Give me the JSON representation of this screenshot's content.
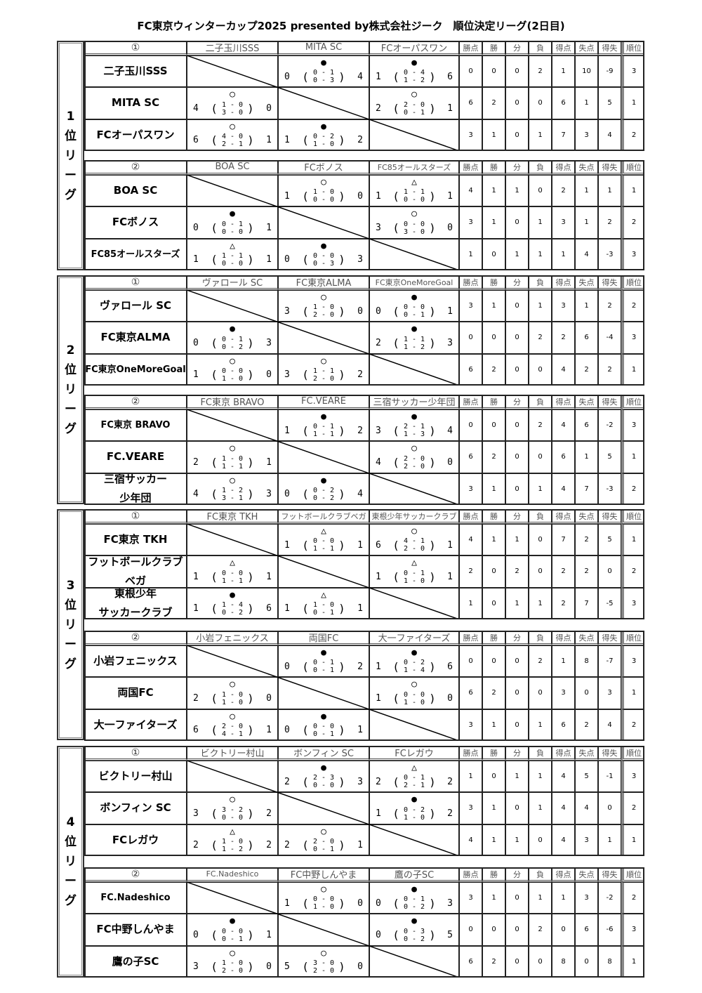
{
  "title": "FC東京ウィンターカップ2025 presented by株式会社ジーク　順位決定リーグ(2日目)",
  "stat_headers": [
    "勝点",
    "勝",
    "分",
    "負",
    "得点",
    "失点",
    "得失",
    "順位"
  ],
  "leagues": [
    {
      "label": [
        "1",
        "位",
        "リ",
        "ー",
        "グ"
      ],
      "groups": [
        {
          "num": "①",
          "header_names": [
            "二子玉川SSS",
            "MITA SC",
            "FCオーパスワン"
          ],
          "teams": [
            {
              "name": [
                "二子玉川SSS"
              ],
              "results": [
                null,
                [
                  "●",
                  0,
                  0,
                  1,
                  0,
                  3,
                  4
                ],
                [
                  "●",
                  1,
                  0,
                  4,
                  1,
                  2,
                  6
                ]
              ],
              "stats": [
                0,
                0,
                0,
                2,
                1,
                10,
                -9,
                3
              ]
            },
            {
              "name": [
                "MITA SC"
              ],
              "results": [
                [
                  "○",
                  4,
                  1,
                  0,
                  3,
                  0,
                  0
                ],
                null,
                [
                  "○",
                  2,
                  2,
                  0,
                  0,
                  1,
                  1
                ]
              ],
              "stats": [
                6,
                2,
                0,
                0,
                6,
                1,
                5,
                1
              ]
            },
            {
              "name": [
                "FCオーパスワン"
              ],
              "results": [
                [
                  "○",
                  6,
                  4,
                  0,
                  2,
                  1,
                  1
                ],
                [
                  "●",
                  1,
                  0,
                  2,
                  1,
                  0,
                  2
                ],
                null
              ],
              "stats": [
                3,
                1,
                0,
                1,
                7,
                3,
                4,
                2
              ]
            }
          ]
        },
        {
          "num": "②",
          "header_names": [
            "BOA SC",
            "FCボノス",
            "FC85オールスターズ"
          ],
          "teams": [
            {
              "name": [
                "BOA SC"
              ],
              "results": [
                null,
                [
                  "○",
                  1,
                  1,
                  0,
                  0,
                  0,
                  0
                ],
                [
                  "△",
                  1,
                  1,
                  1,
                  0,
                  0,
                  1
                ]
              ],
              "stats": [
                4,
                1,
                1,
                0,
                2,
                1,
                1,
                1
              ]
            },
            {
              "name": [
                "FCボノス"
              ],
              "results": [
                [
                  "●",
                  0,
                  0,
                  1,
                  0,
                  0,
                  1
                ],
                null,
                [
                  "○",
                  3,
                  0,
                  0,
                  3,
                  0,
                  0
                ]
              ],
              "stats": [
                3,
                1,
                0,
                1,
                3,
                1,
                2,
                2
              ]
            },
            {
              "name": [
                "FC85オールスターズ"
              ],
              "results": [
                [
                  "△",
                  1,
                  1,
                  1,
                  0,
                  0,
                  1
                ],
                [
                  "●",
                  0,
                  0,
                  0,
                  0,
                  3,
                  3
                ],
                null
              ],
              "stats": [
                1,
                0,
                1,
                1,
                1,
                4,
                -3,
                3
              ]
            }
          ]
        }
      ]
    },
    {
      "label": [
        "2",
        "位",
        "リ",
        "ー",
        "グ"
      ],
      "groups": [
        {
          "num": "①",
          "header_names": [
            "ヴァロール SC",
            "FC東京ALMA",
            "FC東京OneMoreGoal"
          ],
          "teams": [
            {
              "name": [
                "ヴァロール SC"
              ],
              "results": [
                null,
                [
                  "○",
                  3,
                  1,
                  0,
                  2,
                  0,
                  0
                ],
                [
                  "●",
                  0,
                  0,
                  0,
                  0,
                  1,
                  1
                ]
              ],
              "stats": [
                3,
                1,
                0,
                1,
                3,
                1,
                2,
                2
              ]
            },
            {
              "name": [
                "FC東京ALMA"
              ],
              "results": [
                [
                  "●",
                  0,
                  0,
                  1,
                  0,
                  2,
                  3
                ],
                null,
                [
                  "●",
                  2,
                  1,
                  1,
                  1,
                  2,
                  3
                ]
              ],
              "stats": [
                0,
                0,
                0,
                2,
                2,
                6,
                -4,
                3
              ]
            },
            {
              "name": [
                "FC東京OneMoreGoal"
              ],
              "results": [
                [
                  "○",
                  1,
                  0,
                  0,
                  1,
                  0,
                  0
                ],
                [
                  "○",
                  3,
                  1,
                  1,
                  2,
                  0,
                  2
                ],
                null
              ],
              "stats": [
                6,
                2,
                0,
                0,
                4,
                2,
                2,
                1
              ]
            }
          ]
        },
        {
          "num": "②",
          "header_names": [
            "FC東京 BRAVO",
            "FC.VEARE",
            "三宿サッカー少年団"
          ],
          "teams": [
            {
              "name": [
                "FC東京 BRAVO"
              ],
              "results": [
                null,
                [
                  "●",
                  1,
                  0,
                  1,
                  1,
                  1,
                  2
                ],
                [
                  "●",
                  3,
                  2,
                  1,
                  1,
                  3,
                  4
                ]
              ],
              "stats": [
                0,
                0,
                0,
                2,
                4,
                6,
                -2,
                3
              ]
            },
            {
              "name": [
                "FC.VEARE"
              ],
              "results": [
                [
                  "○",
                  2,
                  1,
                  0,
                  1,
                  1,
                  1
                ],
                null,
                [
                  "○",
                  4,
                  2,
                  0,
                  2,
                  0,
                  0
                ]
              ],
              "stats": [
                6,
                2,
                0,
                0,
                6,
                1,
                5,
                1
              ]
            },
            {
              "name": [
                "三宿サッカー",
                "少年団"
              ],
              "results": [
                [
                  "○",
                  4,
                  1,
                  2,
                  3,
                  1,
                  3
                ],
                [
                  "●",
                  0,
                  0,
                  2,
                  0,
                  2,
                  4
                ],
                null
              ],
              "stats": [
                3,
                1,
                0,
                1,
                4,
                7,
                -3,
                2
              ]
            }
          ]
        }
      ]
    },
    {
      "label": [
        "3",
        "位",
        "リ",
        "ー",
        "グ"
      ],
      "groups": [
        {
          "num": "①",
          "header_names": [
            "FC東京 TKH",
            "フットボールクラブベガ",
            "東根少年サッカークラブ"
          ],
          "teams": [
            {
              "name": [
                "FC東京 TKH"
              ],
              "results": [
                null,
                [
                  "△",
                  1,
                  0,
                  0,
                  1,
                  1,
                  1
                ],
                [
                  "○",
                  6,
                  4,
                  1,
                  2,
                  0,
                  1
                ]
              ],
              "stats": [
                4,
                1,
                1,
                0,
                7,
                2,
                5,
                1
              ]
            },
            {
              "name": [
                "フットボールクラブ",
                "ベガ"
              ],
              "results": [
                [
                  "△",
                  1,
                  0,
                  0,
                  1,
                  1,
                  1
                ],
                null,
                [
                  "△",
                  1,
                  0,
                  1,
                  1,
                  0,
                  1
                ]
              ],
              "stats": [
                2,
                0,
                2,
                0,
                2,
                2,
                0,
                2
              ]
            },
            {
              "name": [
                "東根少年",
                "サッカークラブ"
              ],
              "results": [
                [
                  "●",
                  1,
                  1,
                  4,
                  0,
                  2,
                  6
                ],
                [
                  "△",
                  1,
                  1,
                  0,
                  0,
                  1,
                  1
                ],
                null
              ],
              "stats": [
                1,
                0,
                1,
                1,
                2,
                7,
                -5,
                3
              ]
            }
          ]
        },
        {
          "num": "②",
          "header_names": [
            "小岩フェニックス",
            "両国FC",
            "大一ファイターズ"
          ],
          "teams": [
            {
              "name": [
                "小岩フェニックス"
              ],
              "results": [
                null,
                [
                  "●",
                  0,
                  0,
                  1,
                  0,
                  1,
                  2
                ],
                [
                  "●",
                  1,
                  0,
                  2,
                  1,
                  4,
                  6
                ]
              ],
              "stats": [
                0,
                0,
                0,
                2,
                1,
                8,
                -7,
                3
              ]
            },
            {
              "name": [
                "両国FC"
              ],
              "results": [
                [
                  "○",
                  2,
                  1,
                  0,
                  1,
                  0,
                  0
                ],
                null,
                [
                  "○",
                  1,
                  0,
                  0,
                  1,
                  0,
                  0
                ]
              ],
              "stats": [
                6,
                2,
                0,
                0,
                3,
                0,
                3,
                1
              ]
            },
            {
              "name": [
                "大一ファイターズ"
              ],
              "results": [
                [
                  "○",
                  6,
                  2,
                  0,
                  4,
                  1,
                  1
                ],
                [
                  "●",
                  0,
                  0,
                  0,
                  0,
                  1,
                  1
                ],
                null
              ],
              "stats": [
                3,
                1,
                0,
                1,
                6,
                2,
                4,
                2
              ]
            }
          ]
        }
      ]
    },
    {
      "label": [
        "4",
        "位",
        "リ",
        "ー",
        "グ"
      ],
      "groups": [
        {
          "num": "①",
          "header_names": [
            "ビクトリー村山",
            "ボンフィン SC",
            "FCレガウ"
          ],
          "teams": [
            {
              "name": [
                "ビクトリー村山"
              ],
              "results": [
                null,
                [
                  "●",
                  2,
                  2,
                  3,
                  0,
                  0,
                  3
                ],
                [
                  "△",
                  2,
                  0,
                  1,
                  2,
                  1,
                  2
                ]
              ],
              "stats": [
                1,
                0,
                1,
                1,
                4,
                5,
                -1,
                3
              ]
            },
            {
              "name": [
                "ボンフィン SC"
              ],
              "results": [
                [
                  "○",
                  3,
                  3,
                  2,
                  0,
                  0,
                  2
                ],
                null,
                [
                  "●",
                  1,
                  0,
                  2,
                  1,
                  0,
                  2
                ]
              ],
              "stats": [
                3,
                1,
                0,
                1,
                4,
                4,
                0,
                2
              ]
            },
            {
              "name": [
                "FCレガウ"
              ],
              "results": [
                [
                  "△",
                  2,
                  1,
                  0,
                  1,
                  2,
                  2
                ],
                [
                  "○",
                  2,
                  2,
                  0,
                  0,
                  1,
                  1
                ],
                null
              ],
              "stats": [
                4,
                1,
                1,
                0,
                4,
                3,
                1,
                1
              ]
            }
          ]
        },
        {
          "num": "②",
          "header_names": [
            "FC.Nadeshico",
            "FC中野しんやま",
            "鷹の子SC"
          ],
          "teams": [
            {
              "name": [
                "FC.Nadeshico"
              ],
              "results": [
                null,
                [
                  "○",
                  1,
                  0,
                  0,
                  1,
                  0,
                  0
                ],
                [
                  "●",
                  0,
                  0,
                  1,
                  0,
                  2,
                  3
                ]
              ],
              "stats": [
                3,
                1,
                0,
                1,
                1,
                3,
                -2,
                2
              ]
            },
            {
              "name": [
                "FC中野しんやま"
              ],
              "results": [
                [
                  "●",
                  0,
                  0,
                  0,
                  0,
                  1,
                  1
                ],
                null,
                [
                  "●",
                  0,
                  0,
                  3,
                  0,
                  2,
                  5
                ]
              ],
              "stats": [
                0,
                0,
                0,
                2,
                0,
                6,
                -6,
                3
              ]
            },
            {
              "name": [
                "鷹の子SC"
              ],
              "results": [
                [
                  "○",
                  3,
                  1,
                  0,
                  2,
                  0,
                  0
                ],
                [
                  "○",
                  5,
                  3,
                  0,
                  2,
                  0,
                  0
                ],
                null
              ],
              "stats": [
                6,
                2,
                0,
                0,
                8,
                0,
                8,
                1
              ]
            }
          ]
        }
      ]
    }
  ]
}
